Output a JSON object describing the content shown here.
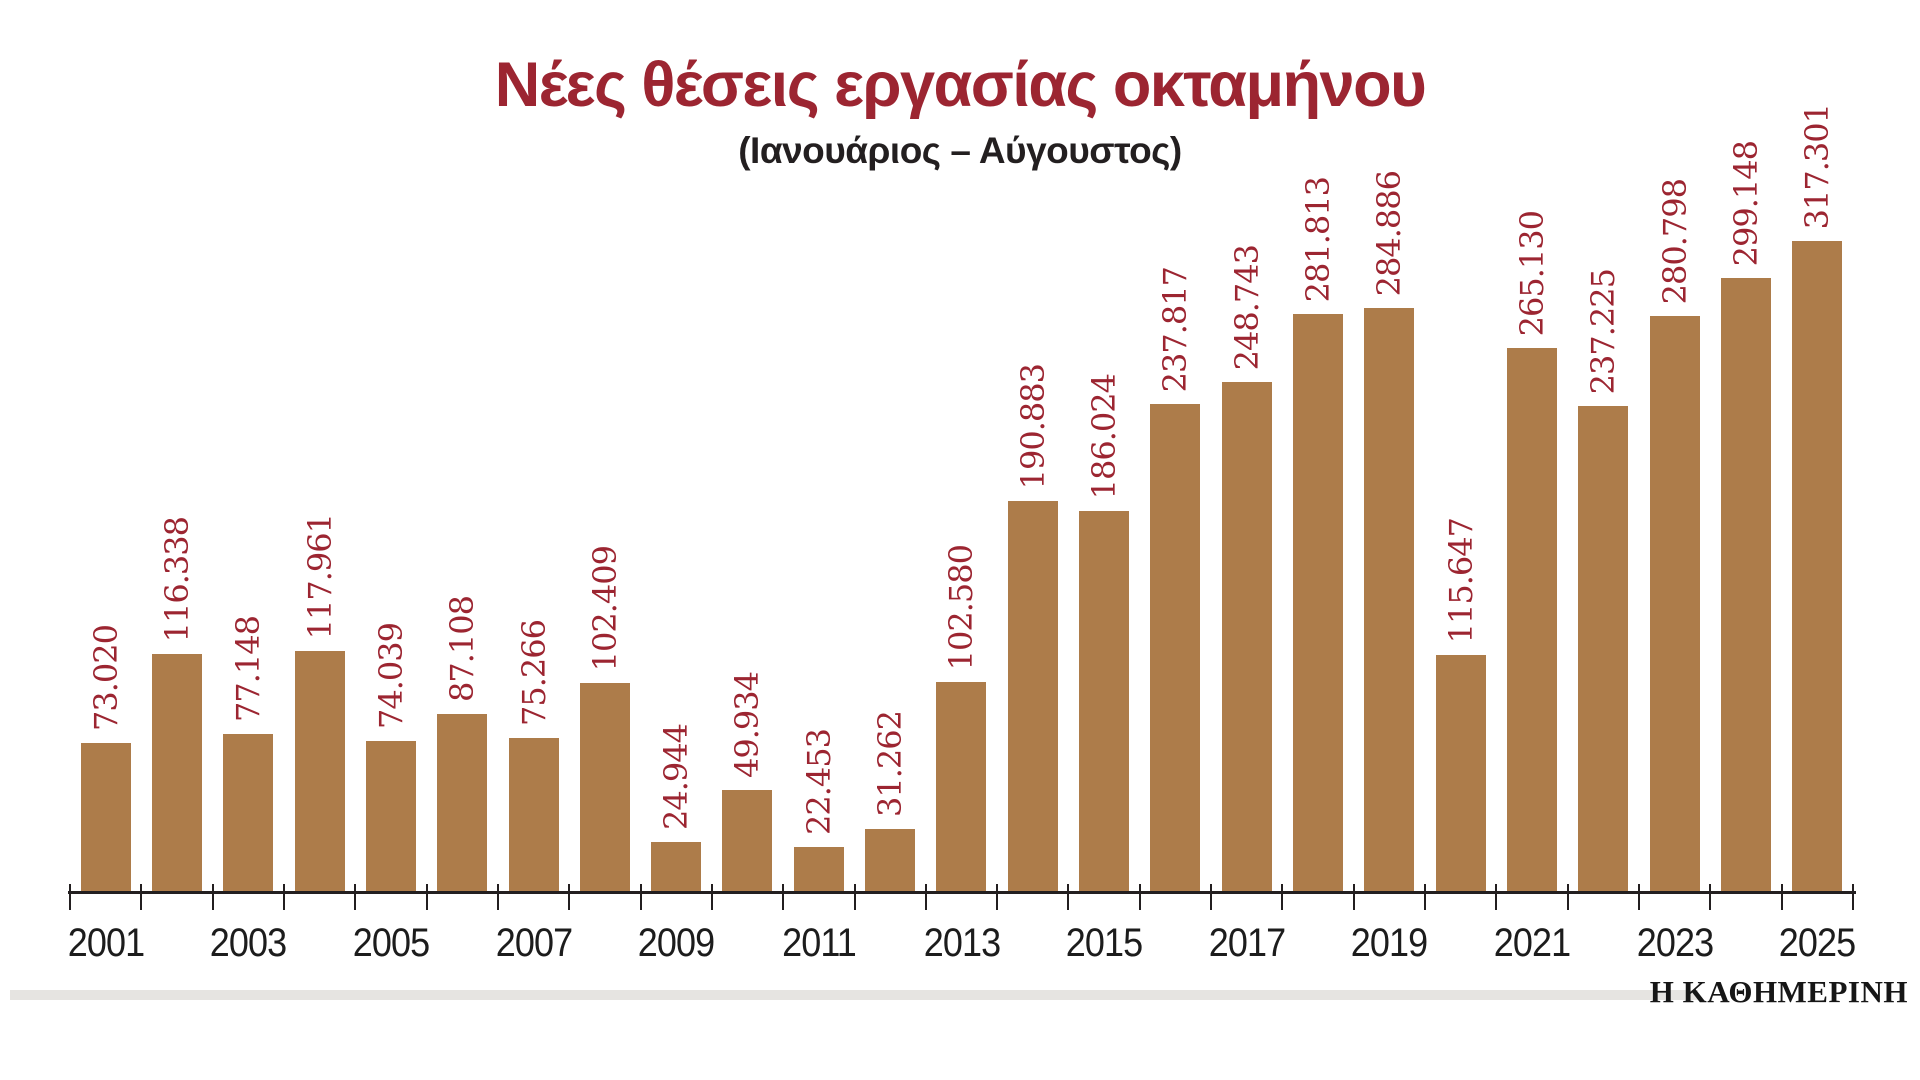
{
  "chart_data": {
    "type": "bar",
    "title": "Νέες θέσεις εργασίας οκταμήνου",
    "subtitle": "(Ιανουάριος – Αύγουστος)",
    "categories": [
      2001,
      2002,
      2003,
      2004,
      2005,
      2006,
      2007,
      2008,
      2009,
      2010,
      2011,
      2012,
      2013,
      2014,
      2015,
      2016,
      2017,
      2018,
      2019,
      2020,
      2021,
      2022,
      2023,
      2024,
      2025
    ],
    "values": [
      73020,
      116338,
      77148,
      117961,
      74039,
      87108,
      75266,
      102409,
      24944,
      49934,
      22453,
      31262,
      102580,
      190883,
      186024,
      237817,
      248743,
      281813,
      284886,
      115647,
      265130,
      237225,
      280798,
      299148,
      317301
    ],
    "value_labels": [
      "73.020",
      "116.338",
      "77.148",
      "117.961",
      "74.039",
      "87.108",
      "75.266",
      "102.409",
      "24.944",
      "49.934",
      "22.453",
      "31.262",
      "102.580",
      "190.883",
      "186.024",
      "237.817",
      "248.743",
      "281.813",
      "284.886",
      "115.647",
      "265.130",
      "237.225",
      "280.798",
      "299.148",
      "317.301"
    ],
    "x_tick_labels": [
      "2001",
      "2003",
      "2005",
      "2007",
      "2009",
      "2011",
      "2013",
      "2015",
      "2017",
      "2019",
      "2021",
      "2023",
      "2025"
    ],
    "ylim": [
      0,
      317301
    ],
    "grid": false,
    "legend": false,
    "bar_color": "#ad7c4a",
    "value_label_color": "#9c2531",
    "title_color": "#9c2531",
    "axis_color": "#231f20"
  },
  "footer": {
    "brand": "Η ΚΑΘΗΜΕΡΙΝΗ"
  }
}
